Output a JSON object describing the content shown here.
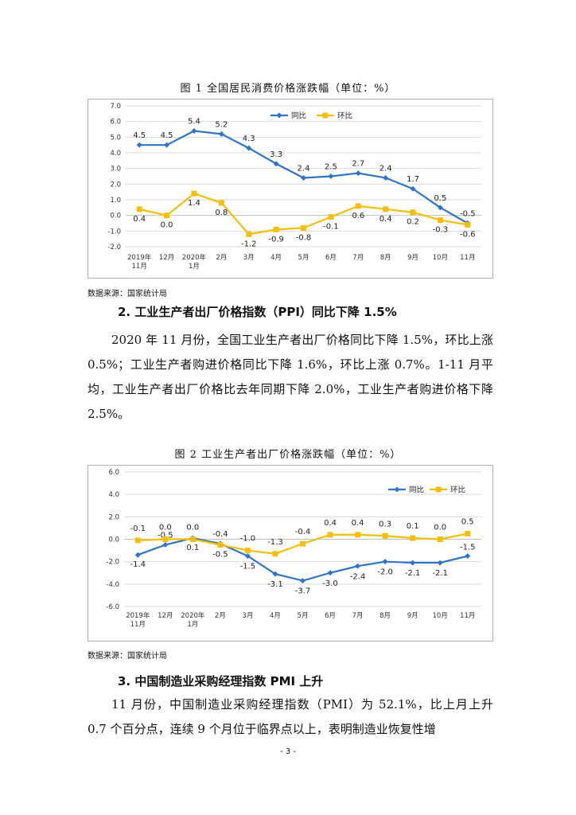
{
  "fig1": {
    "caption": "图 1    全国居民消费价格涨跌幅（单位：%）",
    "source": "数据来源：国家统计局"
  },
  "fig2": {
    "caption": "图 2    工业生产者出厂价格涨跌幅（单位：%）",
    "source": "数据来源：国家统计局"
  },
  "section2": {
    "heading": "2. 工业生产者出厂价格指数（PPI）同比下降 1.5%",
    "paragraph": "2020 年 11 月份，全国工业生产者出厂价格同比下降 1.5%，环比上涨 0.5%；工业生产者购进价格同比下降 1.6%，环比上涨 0.7%。1-11 月平均，工业生产者出厂价格比去年同期下降 2.0%，工业生产者购进价格下降 2.5%。"
  },
  "section3": {
    "heading": "3. 中国制造业采购经理指数 PMI 上升",
    "paragraph": "11 月份，中国制造业采购经理指数（PMI）为 52.1%，比上月上升 0.7 个百分点，连续 9 个月位于临界点以上，表明制造业恢复性增"
  },
  "page_number": "- 3 -",
  "colors": {
    "yoy": "#2e75c8",
    "mom": "#f5be0a",
    "grid": "#d9d9d9",
    "border": "#b0b0b0"
  },
  "chart_data": [
    {
      "type": "line",
      "title": "全国居民消费价格涨跌幅（单位：%）",
      "categories": [
        [
          "2019年",
          "11月"
        ],
        [
          "12月"
        ],
        [
          "2020年",
          "1月"
        ],
        [
          "2月"
        ],
        [
          "3月"
        ],
        [
          "4月"
        ],
        [
          "5月"
        ],
        [
          "6月"
        ],
        [
          "7月"
        ],
        [
          "8月"
        ],
        [
          "9月"
        ],
        [
          "10月"
        ],
        [
          "11月"
        ]
      ],
      "ylim": [
        -2.0,
        7.0
      ],
      "yticks": [
        "-2.0",
        "-1.0",
        "0.0",
        "1.0",
        "2.0",
        "3.0",
        "4.0",
        "5.0",
        "6.0",
        "7.0"
      ],
      "legend_position": "top",
      "series": [
        {
          "name": "同比",
          "marker": "diamond",
          "values": [
            4.5,
            4.5,
            5.4,
            5.2,
            4.3,
            3.3,
            2.4,
            2.5,
            2.7,
            2.4,
            1.7,
            0.5,
            -0.5
          ],
          "labels": [
            "4.5",
            "4.5",
            "5.4",
            "5.2",
            "4.3",
            "3.3",
            "2.4",
            "2.5",
            "2.7",
            "2.4",
            "1.7",
            "0.5",
            "-0.5"
          ]
        },
        {
          "name": "环比",
          "marker": "square",
          "values": [
            0.4,
            0.0,
            1.4,
            0.8,
            -1.2,
            -0.9,
            -0.8,
            -0.1,
            0.6,
            0.4,
            0.2,
            -0.3,
            -0.6
          ],
          "labels": [
            "0.4",
            "0.0",
            "1.4",
            "0.8",
            "-1.2",
            "-0.9",
            "-0.8",
            "-0.1",
            "0.6",
            "0.4",
            "0.2",
            "-0.3",
            "-0.6"
          ]
        }
      ]
    },
    {
      "type": "line",
      "title": "工业生产者出厂价格涨跌幅（单位：%）",
      "categories": [
        [
          "2019年",
          "11月"
        ],
        [
          "12月"
        ],
        [
          "2020年",
          "1月"
        ],
        [
          "2月"
        ],
        [
          "3月"
        ],
        [
          "4月"
        ],
        [
          "5月"
        ],
        [
          "6月"
        ],
        [
          "7月"
        ],
        [
          "8月"
        ],
        [
          "9月"
        ],
        [
          "10月"
        ],
        [
          "11月"
        ]
      ],
      "ylim": [
        -6.0,
        6.0
      ],
      "yticks": [
        "-6.0",
        "-4.0",
        "-2.0",
        "0.0",
        "2.0",
        "4.0",
        "6.0"
      ],
      "legend_position": "top-right",
      "series": [
        {
          "name": "同比",
          "marker": "diamond",
          "values": [
            -1.4,
            -0.5,
            0.1,
            -0.4,
            -1.5,
            -3.1,
            -3.7,
            -3.0,
            -2.4,
            -2.0,
            -2.1,
            -2.1,
            -1.5
          ],
          "labels": [
            "-1.4",
            "-0.5",
            "0.1",
            "-0.4",
            "-1.5",
            "-3.1",
            "-3.7",
            "-3.0",
            "-2.4",
            "-2.0",
            "-2.1",
            "-2.1",
            "-1.5"
          ]
        },
        {
          "name": "环比",
          "marker": "square",
          "values": [
            -0.1,
            0.0,
            0.0,
            -0.5,
            -1.0,
            -1.3,
            -0.4,
            0.4,
            0.4,
            0.3,
            0.1,
            0.0,
            0.5
          ],
          "labels": [
            "-0.1",
            "0.0",
            "0.0",
            "-0.5",
            "-1.0",
            "-1.3",
            "-0.4",
            "0.4",
            "0.4",
            "0.3",
            "0.1",
            "0.0",
            "0.5"
          ]
        }
      ]
    }
  ]
}
